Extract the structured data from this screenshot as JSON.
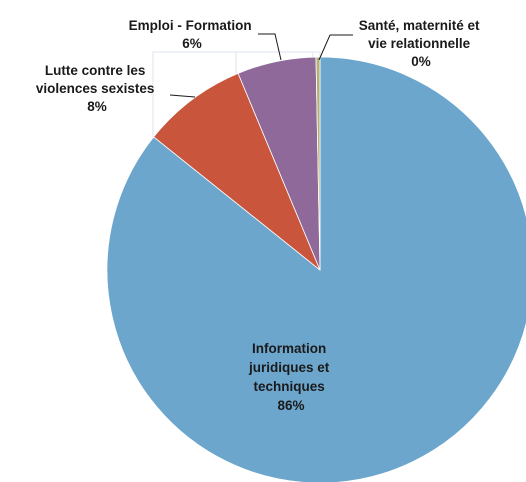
{
  "chart_data": {
    "type": "pie",
    "title": "",
    "slices": [
      {
        "label_lines": [
          "Information",
          "juridiques et",
          "techniques"
        ],
        "percent_label": "86%",
        "value": 86,
        "color": "#6ca6cd"
      },
      {
        "label_lines": [
          "Lutte contre les",
          "violences sexistes"
        ],
        "percent_label": "8%",
        "value": 8,
        "color": "#c9553d"
      },
      {
        "label_lines": [
          "Emploi - Formation"
        ],
        "percent_label": "6%",
        "value": 6,
        "color": "#8e6999"
      },
      {
        "label_lines": [
          "Santé, maternité et",
          "vie relationnelle"
        ],
        "percent_label": "0%",
        "value": 0.3,
        "color": "#b5b07a"
      }
    ]
  }
}
